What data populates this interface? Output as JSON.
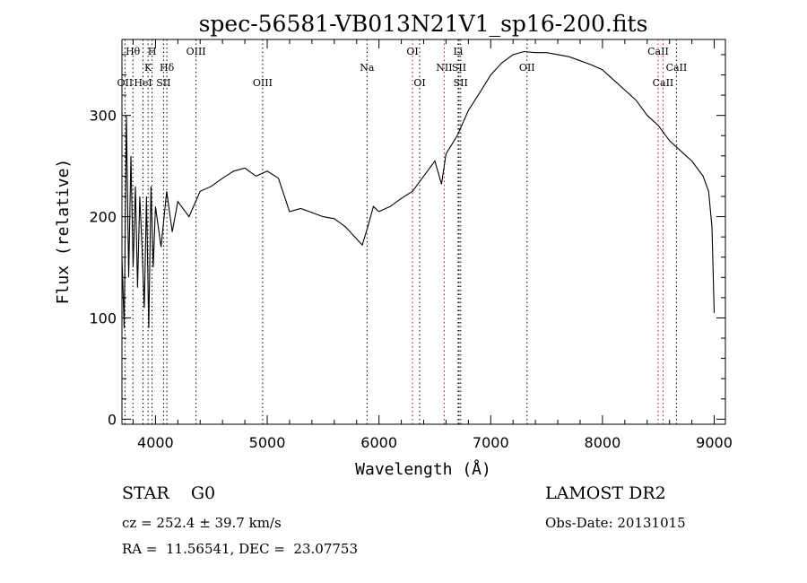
{
  "chart_data": {
    "type": "line",
    "title": "spec-56581-VB013N21V1_sp16-200.fits",
    "xlabel": "Wavelength (Å)",
    "ylabel": "Flux (relative)",
    "xlim": [
      3700,
      9100
    ],
    "ylim": [
      -5,
      375
    ],
    "x_ticks": [
      4000,
      5000,
      6000,
      7000,
      8000,
      9000
    ],
    "y_ticks": [
      0,
      100,
      200,
      300
    ],
    "grid": false,
    "series": [
      {
        "color": "#000000",
        "points": [
          [
            3700,
            160
          ],
          [
            3720,
            90
          ],
          [
            3740,
            300
          ],
          [
            3760,
            140
          ],
          [
            3780,
            260
          ],
          [
            3800,
            150
          ],
          [
            3820,
            230
          ],
          [
            3840,
            130
          ],
          [
            3860,
            220
          ],
          [
            3880,
            170
          ],
          [
            3900,
            110
          ],
          [
            3920,
            220
          ],
          [
            3940,
            90
          ],
          [
            3960,
            230
          ],
          [
            3980,
            150
          ],
          [
            4000,
            210
          ],
          [
            4050,
            170
          ],
          [
            4100,
            225
          ],
          [
            4150,
            185
          ],
          [
            4200,
            215
          ],
          [
            4300,
            200
          ],
          [
            4400,
            225
          ],
          [
            4500,
            230
          ],
          [
            4600,
            238
          ],
          [
            4700,
            245
          ],
          [
            4800,
            248
          ],
          [
            4900,
            240
          ],
          [
            5000,
            245
          ],
          [
            5100,
            238
          ],
          [
            5200,
            205
          ],
          [
            5300,
            208
          ],
          [
            5400,
            204
          ],
          [
            5500,
            200
          ],
          [
            5600,
            198
          ],
          [
            5700,
            190
          ],
          [
            5800,
            178
          ],
          [
            5850,
            172
          ],
          [
            5900,
            190
          ],
          [
            5950,
            210
          ],
          [
            6000,
            205
          ],
          [
            6100,
            210
          ],
          [
            6200,
            218
          ],
          [
            6300,
            225
          ],
          [
            6400,
            240
          ],
          [
            6500,
            255
          ],
          [
            6560,
            232
          ],
          [
            6600,
            262
          ],
          [
            6700,
            280
          ],
          [
            6800,
            305
          ],
          [
            6900,
            322
          ],
          [
            7000,
            340
          ],
          [
            7100,
            352
          ],
          [
            7200,
            360
          ],
          [
            7300,
            363
          ],
          [
            7400,
            362
          ],
          [
            7500,
            362
          ],
          [
            7600,
            360
          ],
          [
            7700,
            358
          ],
          [
            7800,
            354
          ],
          [
            7900,
            350
          ],
          [
            8000,
            345
          ],
          [
            8100,
            335
          ],
          [
            8200,
            325
          ],
          [
            8300,
            315
          ],
          [
            8400,
            300
          ],
          [
            8500,
            290
          ],
          [
            8600,
            275
          ],
          [
            8700,
            265
          ],
          [
            8800,
            255
          ],
          [
            8900,
            240
          ],
          [
            8950,
            225
          ],
          [
            8980,
            190
          ],
          [
            9000,
            105
          ]
        ]
      }
    ],
    "lines": [
      {
        "label": "Hθ",
        "x": 3798,
        "row": 1,
        "color": "#000000"
      },
      {
        "label": "H",
        "x": 3970,
        "row": 1,
        "color": "#000000"
      },
      {
        "label": "K",
        "x": 3934,
        "row": 2,
        "color": "#000000"
      },
      {
        "label": "Hδ",
        "x": 4102,
        "row": 2,
        "color": "#000000"
      },
      {
        "label": "OII",
        "x": 3727,
        "row": 3,
        "color": "#000000"
      },
      {
        "label": "HeI",
        "x": 3889,
        "row": 3,
        "color": "#000000"
      },
      {
        "label": "SII",
        "x": 4072,
        "row": 3,
        "color": "#000000"
      },
      {
        "label": "OIII",
        "x": 4363,
        "row": 1,
        "color": "#000000"
      },
      {
        "label": "OIII",
        "x": 4959,
        "row": 3,
        "color": "#000000"
      },
      {
        "label": "Na",
        "x": 5893,
        "row": 2,
        "color": "#000000"
      },
      {
        "label": "OI",
        "x": 6300,
        "row": 1,
        "color": "#cc0000"
      },
      {
        "label": "OI",
        "x": 6364,
        "row": 3,
        "color": "#000000"
      },
      {
        "label": "Li",
        "x": 6708,
        "row": 1,
        "color": "#000000"
      },
      {
        "label": "NII",
        "x": 6584,
        "row": 2,
        "color": "#cc0000"
      },
      {
        "label": "SII",
        "x": 6717,
        "row": 2,
        "color": "#000000"
      },
      {
        "label": "SII",
        "x": 6731,
        "row": 3,
        "color": "#000000"
      },
      {
        "label": "OII",
        "x": 7325,
        "row": 2,
        "color": "#000000"
      },
      {
        "label": "CaII",
        "x": 8498,
        "row": 1,
        "color": "#cc0000"
      },
      {
        "label": "CaII",
        "x": 8542,
        "row": 3,
        "color": "#cc0000"
      },
      {
        "label": "CaII",
        "x": 8662,
        "row": 2,
        "color": "#000000"
      }
    ]
  },
  "info": {
    "class": "STAR    G0",
    "survey": "LAMOST DR2",
    "cz": "cz = 252.4 ± 39.7 km/s",
    "obs_date": "Obs-Date: 20131015",
    "radec": "RA =  11.56541, DEC =  23.07753"
  }
}
